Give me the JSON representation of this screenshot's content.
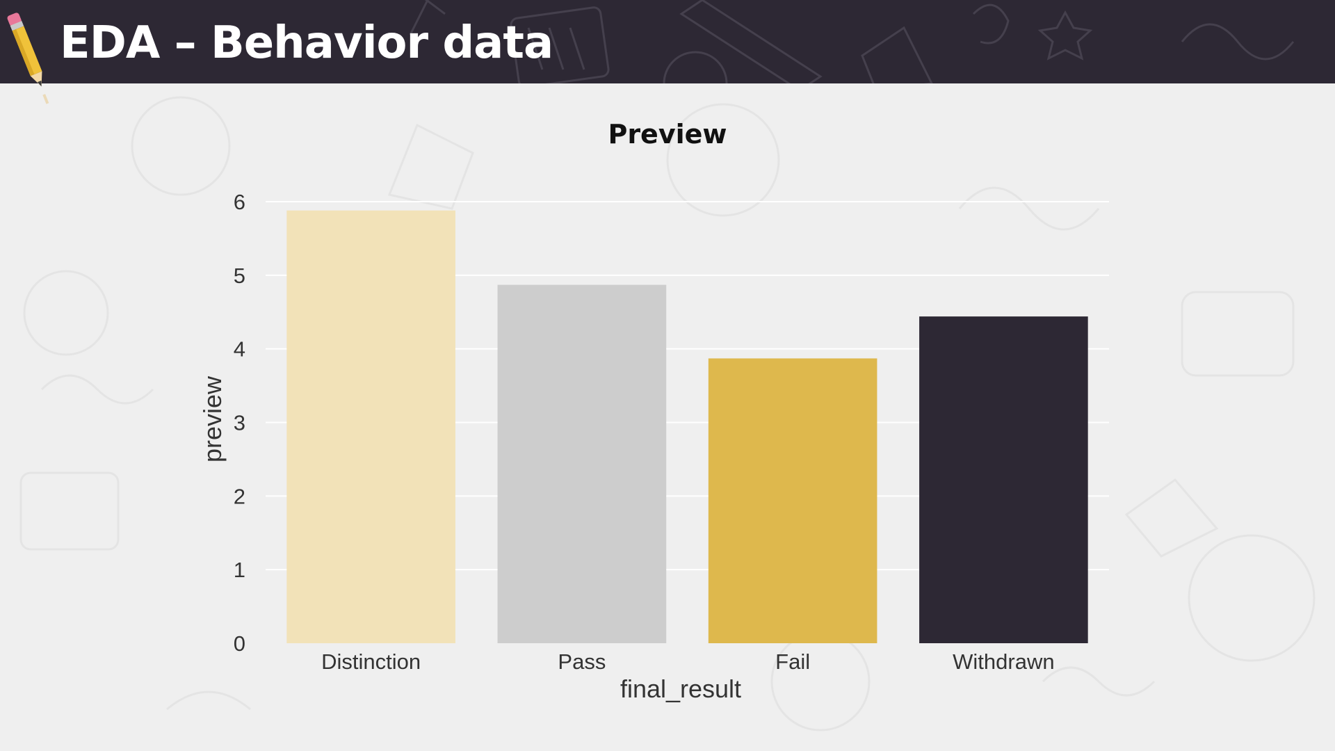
{
  "slide": {
    "title": "EDA – Behavior data",
    "icon": "pencil-icon",
    "header_color": "#2d2834",
    "background_color": "#efefef"
  },
  "chart_data": {
    "type": "bar",
    "title": "Preview",
    "xlabel": "final_result",
    "ylabel": "preview",
    "categories": [
      "Distinction",
      "Pass",
      "Fail",
      "Withdrawn"
    ],
    "values": [
      5.88,
      4.87,
      3.87,
      4.44
    ],
    "colors": [
      "#f2e2b8",
      "#cdcdcd",
      "#deb84d",
      "#2d2834"
    ],
    "ylim": [
      0,
      6
    ],
    "yticks": [
      "0",
      "1",
      "2",
      "3",
      "4",
      "5",
      "6"
    ],
    "grid": true,
    "legend": false
  }
}
